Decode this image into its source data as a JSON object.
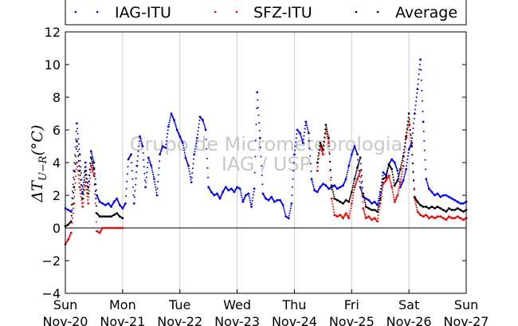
{
  "chart_data": {
    "type": "scatter",
    "title": "",
    "xlabel": "",
    "ylabel": "ΔT_{U-R}(°C)",
    "ylabel_main": "ΔT",
    "ylabel_sub": "U−R",
    "ylabel_unit": "(°C)",
    "xlim": [
      0,
      7
    ],
    "ylim": [
      -4,
      12
    ],
    "yticks": [
      -4,
      -2,
      0,
      2,
      4,
      6,
      8,
      10,
      12
    ],
    "xticks": [
      {
        "x": 0,
        "day": "Sun",
        "date": "Nov-20"
      },
      {
        "x": 1,
        "day": "Mon",
        "date": "Nov-21"
      },
      {
        "x": 2,
        "day": "Tue",
        "date": "Nov-22"
      },
      {
        "x": 3,
        "day": "Wed",
        "date": "Nov-23"
      },
      {
        "x": 4,
        "day": "Thu",
        "date": "Nov-24"
      },
      {
        "x": 5,
        "day": "Fri",
        "date": "Nov-25"
      },
      {
        "x": 6,
        "day": "Sat",
        "date": "Nov-26"
      },
      {
        "x": 7,
        "day": "Sun",
        "date": "Nov-27"
      }
    ],
    "grid": "vertical",
    "zero_line": true,
    "legend_position": "top",
    "watermark": [
      "Grupo de Micrometeorologia",
      "IAG / USP"
    ],
    "series": [
      {
        "name": "IAG-ITU",
        "color": "#0000ff",
        "x": [
          0.0,
          0.05,
          0.1,
          0.15,
          0.2,
          0.25,
          0.3,
          0.35,
          0.4,
          0.45,
          0.5,
          0.55,
          0.6,
          0.65,
          0.7,
          0.75,
          0.8,
          0.85,
          0.9,
          0.95,
          1.0,
          1.05,
          1.1,
          1.15,
          1.2,
          1.25,
          1.3,
          1.35,
          1.4,
          1.45,
          1.5,
          1.55,
          1.6,
          1.65,
          1.7,
          1.75,
          1.8,
          1.85,
          1.9,
          1.95,
          2.0,
          2.05,
          2.1,
          2.15,
          2.2,
          2.25,
          2.3,
          2.35,
          2.4,
          2.45,
          2.5,
          2.55,
          2.6,
          2.65,
          2.7,
          2.75,
          2.8,
          2.85,
          2.9,
          2.95,
          3.0,
          3.05,
          3.1,
          3.15,
          3.2,
          3.25,
          3.3,
          3.35,
          3.4,
          3.45,
          3.5,
          3.55,
          3.6,
          3.65,
          3.7,
          3.75,
          3.8,
          3.85,
          3.9,
          3.95,
          4.0,
          4.05,
          4.1,
          4.15,
          4.2,
          4.25,
          4.3,
          4.35,
          4.4,
          4.45,
          4.5,
          4.55,
          4.6,
          4.65,
          4.7,
          4.75,
          4.8,
          4.85,
          4.9,
          4.95,
          5.0,
          5.05,
          5.1,
          5.15,
          5.2,
          5.25,
          5.3,
          5.35,
          5.4,
          5.45,
          5.5,
          5.55,
          5.6,
          5.65,
          5.7,
          5.75,
          5.8,
          5.85,
          5.9,
          5.95,
          6.0,
          6.05,
          6.1,
          6.15,
          6.2,
          6.25,
          6.3,
          6.35,
          6.4,
          6.45,
          6.5,
          6.55,
          6.6,
          6.65,
          6.7,
          6.75,
          6.8,
          6.85,
          6.9,
          6.95,
          7.0
        ],
        "y": [
          1.2,
          1.1,
          1.0,
          3.5,
          6.4,
          4.5,
          2.2,
          4.0,
          2.5,
          4.7,
          4.0,
          2.0,
          1.6,
          1.5,
          1.4,
          1.5,
          1.3,
          1.6,
          1.8,
          1.4,
          1.2,
          1.5,
          4.2,
          4.5,
          1.5,
          3.8,
          5.6,
          5.0,
          2.5,
          4.3,
          3.8,
          3.0,
          2.0,
          4.5,
          5.0,
          4.9,
          6.2,
          7.0,
          6.6,
          6.0,
          5.6,
          5.2,
          4.3,
          3.8,
          2.8,
          4.5,
          5.5,
          6.8,
          6.6,
          6.0,
          2.5,
          2.2,
          2.0,
          2.1,
          1.8,
          2.2,
          2.5,
          2.3,
          2.4,
          2.2,
          2.5,
          2.4,
          1.6,
          2.0,
          2.1,
          1.3,
          2.4,
          8.3,
          5.5,
          2.1,
          1.8,
          1.7,
          1.9,
          1.6,
          1.7,
          1.7,
          1.4,
          0.7,
          0.6,
          1.5,
          4.5,
          6.0,
          5.8,
          5.2,
          6.5,
          5.8,
          3.0,
          2.3,
          2.2,
          2.5,
          2.7,
          2.6,
          2.4,
          2.5,
          2.6,
          2.4,
          2.5,
          2.6,
          3.0,
          3.8,
          4.5,
          5.0,
          4.5,
          2.5,
          1.9,
          1.8,
          1.7,
          1.5,
          1.6,
          1.4,
          2.2,
          3.4,
          3.2,
          3.9,
          4.2,
          4.0,
          3.5,
          2.5,
          2.9,
          3.6,
          4.8,
          5.2,
          7.0,
          8.5,
          10.3,
          6.5,
          3.0,
          2.4,
          2.2,
          2.0,
          2.1,
          1.9,
          2.0,
          2.0,
          1.9,
          1.8,
          1.7,
          1.6,
          1.5,
          1.5,
          1.6
        ]
      },
      {
        "name": "SFZ-ITU",
        "color": "#ff0000",
        "x": [
          0.0,
          0.05,
          0.1,
          0.15,
          0.2,
          0.25,
          0.3,
          0.35,
          0.4,
          0.45,
          0.5,
          0.55,
          0.6,
          0.65,
          0.7,
          0.75,
          0.8,
          0.85,
          0.9,
          0.95,
          1.0,
          4.4,
          4.45,
          4.5,
          4.55,
          4.6,
          4.65,
          4.7,
          4.75,
          4.8,
          4.85,
          4.9,
          4.95,
          5.0,
          5.05,
          5.1,
          5.15,
          5.2,
          5.25,
          5.3,
          5.35,
          5.4,
          5.45,
          5.5,
          5.55,
          5.6,
          5.65,
          5.7,
          5.75,
          5.8,
          5.85,
          5.9,
          5.95,
          6.0,
          6.05,
          6.1,
          6.15,
          6.2,
          6.25,
          6.3,
          6.35,
          6.4,
          6.45,
          6.5,
          6.55,
          6.6,
          6.65,
          6.7,
          6.75,
          6.8,
          6.85,
          6.9,
          6.95,
          7.0
        ],
        "y": [
          -1.0,
          -0.7,
          -0.3,
          1.5,
          4.0,
          2.5,
          1.3,
          2.8,
          1.5,
          3.8,
          3.2,
          -0.2,
          -0.3,
          0.0,
          0.0,
          0.0,
          0.0,
          0.0,
          0.0,
          0.0,
          0.0,
          3.5,
          5.0,
          4.5,
          6.0,
          5.2,
          1.8,
          0.8,
          0.7,
          0.8,
          0.6,
          0.9,
          0.6,
          1.5,
          2.5,
          3.0,
          3.5,
          1.2,
          0.6,
          0.7,
          0.5,
          0.6,
          0.4,
          1.5,
          2.7,
          2.9,
          3.2,
          2.5,
          1.6,
          2.0,
          2.8,
          3.8,
          5.5,
          6.5,
          5.0,
          1.8,
          1.0,
          0.8,
          0.7,
          0.8,
          0.6,
          0.7,
          0.6,
          0.7,
          0.7,
          0.6,
          0.5,
          0.7,
          0.6,
          0.6,
          0.7,
          0.6,
          0.5,
          0.6
        ]
      },
      {
        "name": "Average",
        "color": "#000000",
        "x": [
          0.0,
          0.05,
          0.1,
          0.15,
          0.2,
          0.25,
          0.3,
          0.35,
          0.4,
          0.45,
          0.5,
          0.55,
          0.6,
          0.65,
          0.7,
          0.75,
          0.8,
          0.85,
          0.9,
          0.95,
          1.0,
          4.4,
          4.45,
          4.5,
          4.55,
          4.6,
          4.65,
          4.7,
          4.75,
          4.8,
          4.85,
          4.9,
          4.95,
          5.0,
          5.05,
          5.1,
          5.15,
          5.2,
          5.25,
          5.3,
          5.35,
          5.4,
          5.45,
          5.5,
          5.55,
          5.6,
          5.65,
          5.7,
          5.75,
          5.8,
          5.85,
          5.9,
          5.95,
          6.0,
          6.05,
          6.1,
          6.15,
          6.2,
          6.25,
          6.3,
          6.35,
          6.4,
          6.45,
          6.5,
          6.55,
          6.6,
          6.65,
          6.7,
          6.75,
          6.8,
          6.85,
          6.9,
          6.95,
          7.0
        ],
        "y": [
          0.1,
          0.2,
          0.4,
          2.5,
          5.3,
          3.5,
          1.8,
          3.5,
          2.1,
          4.3,
          3.6,
          0.9,
          0.7,
          0.7,
          0.7,
          0.7,
          0.7,
          0.8,
          0.9,
          0.7,
          0.6,
          4.0,
          5.2,
          4.8,
          6.3,
          5.5,
          2.6,
          1.8,
          1.7,
          1.6,
          1.5,
          1.7,
          1.6,
          2.2,
          3.0,
          3.7,
          4.3,
          2.1,
          1.3,
          1.2,
          1.1,
          1.1,
          1.0,
          1.8,
          3.0,
          3.1,
          3.9,
          3.6,
          2.6,
          2.9,
          3.6,
          4.4,
          5.6,
          7.0,
          5.0,
          1.9,
          1.6,
          1.4,
          1.3,
          1.3,
          1.2,
          1.3,
          1.2,
          1.3,
          1.2,
          1.1,
          1.0,
          1.2,
          1.1,
          1.1,
          1.2,
          1.1,
          1.0,
          1.1
        ]
      }
    ]
  }
}
